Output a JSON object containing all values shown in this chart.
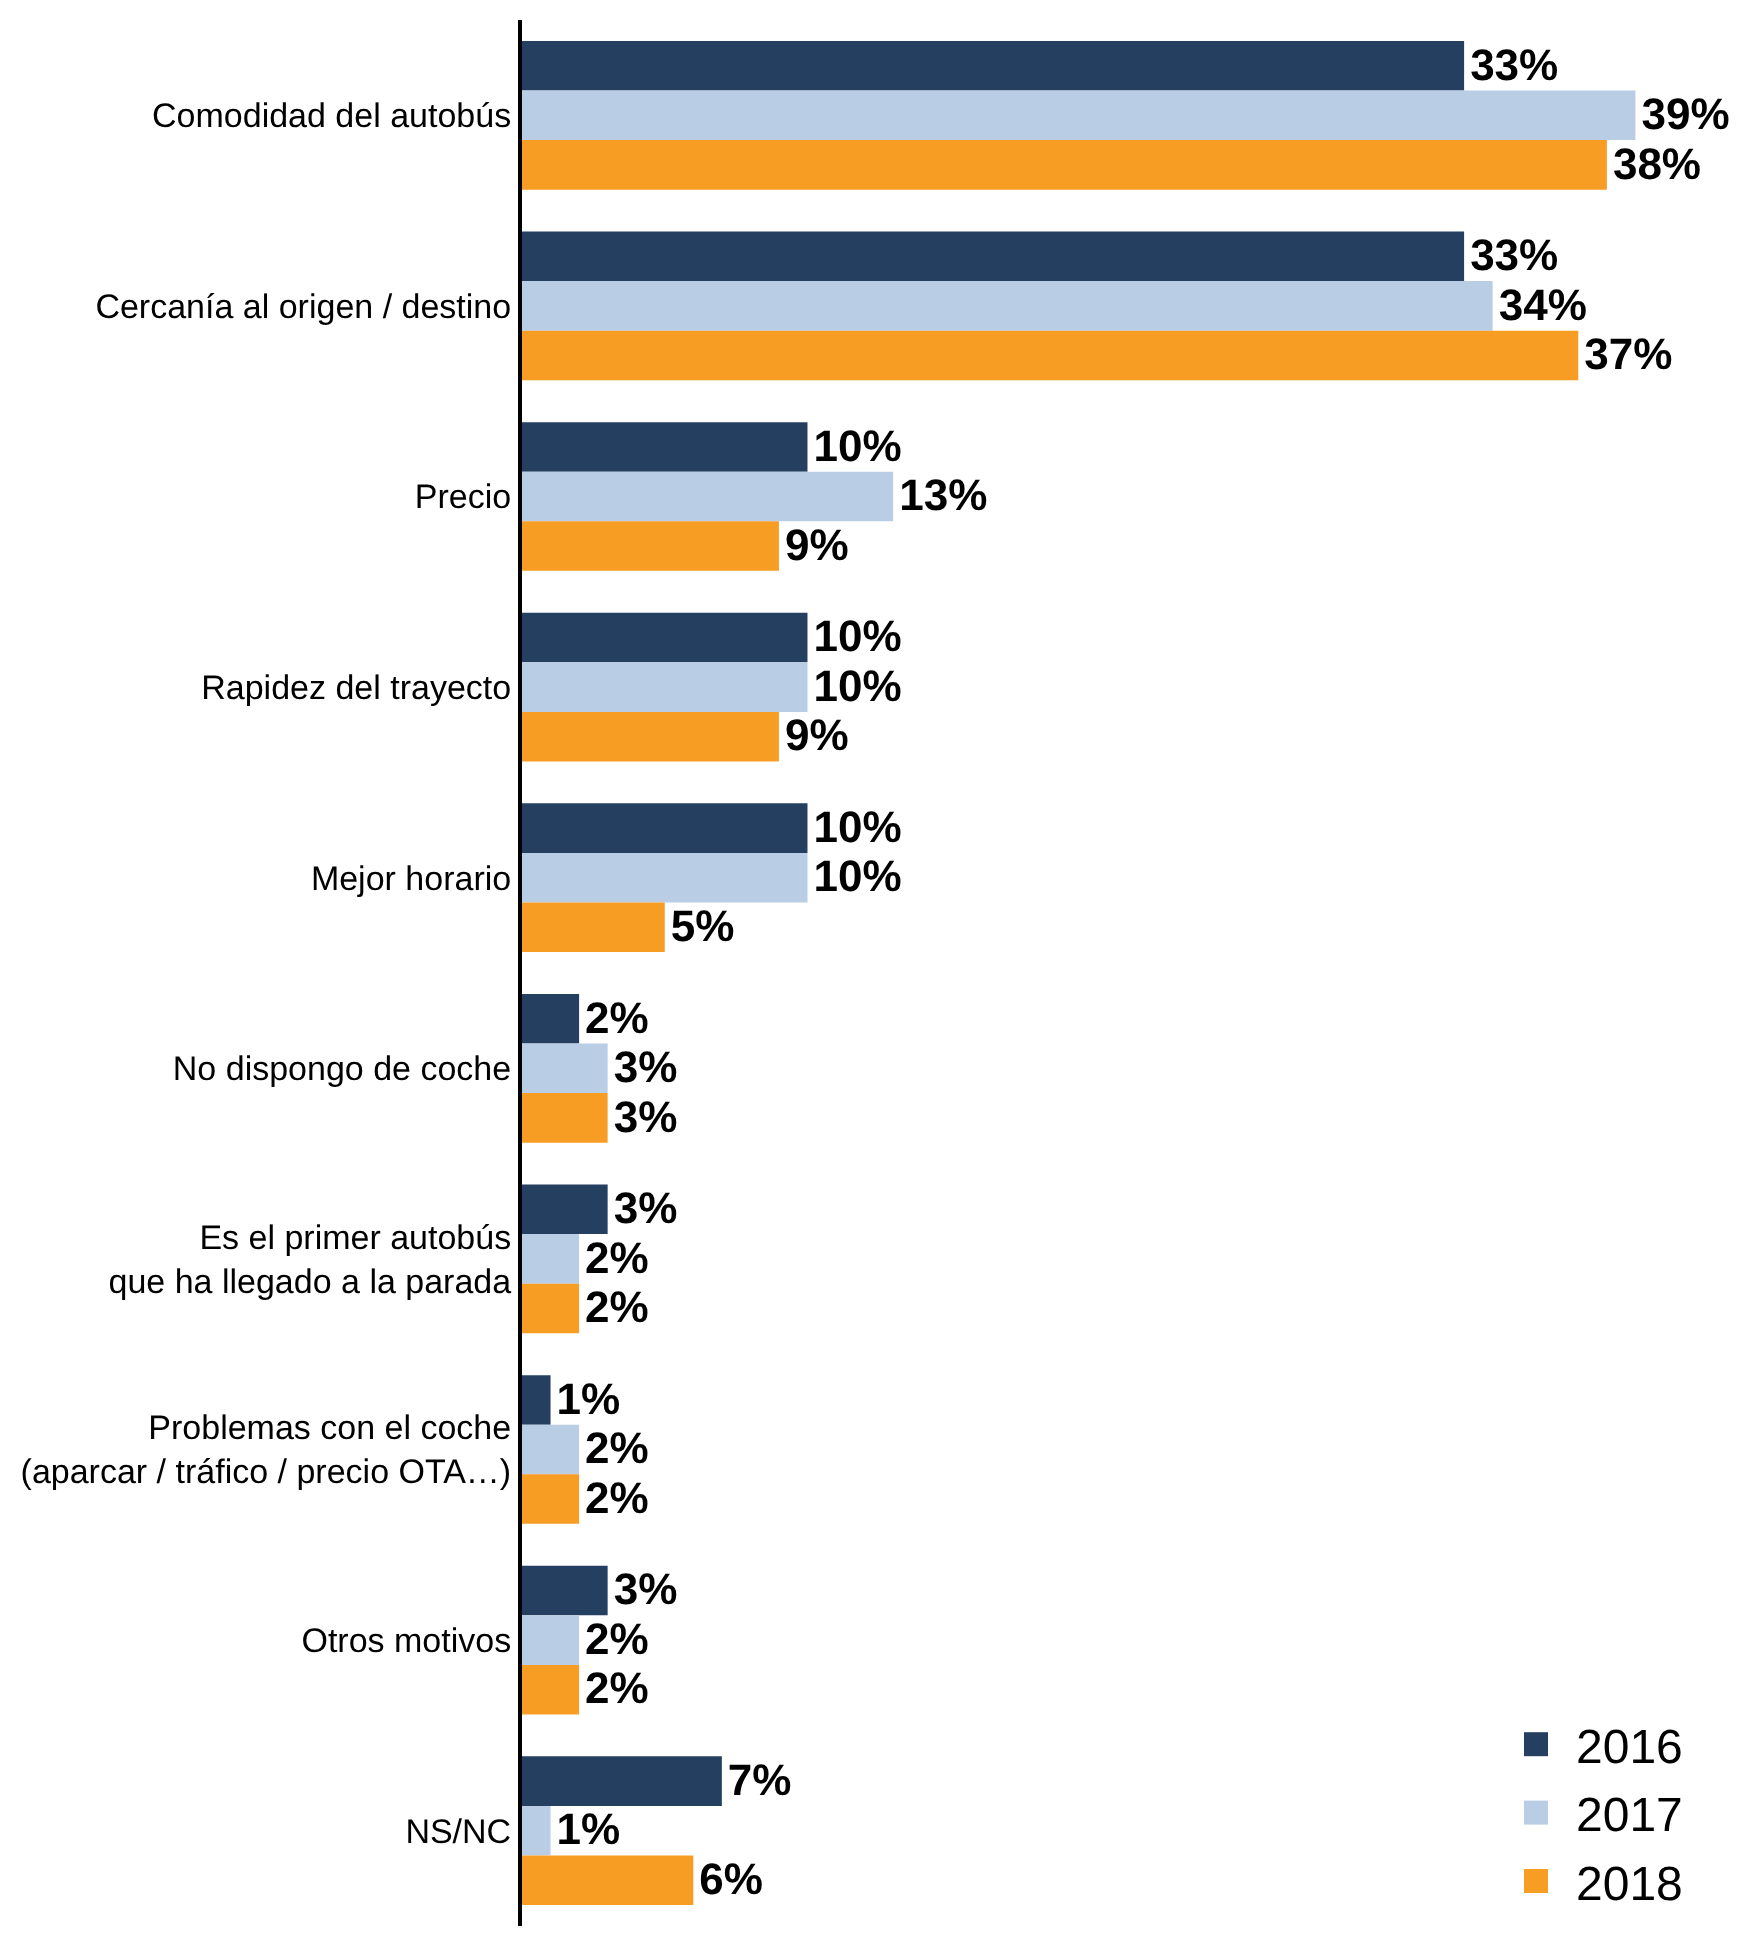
{
  "chart_data": {
    "type": "bar",
    "orientation": "horizontal",
    "categories": [
      "Comodidad del autobús",
      "Cercanía al origen / destino",
      "Precio",
      "Rapidez del trayecto",
      "Mejor horario",
      "No dispongo de coche",
      "Es el primer autobús\nque ha llegado a la parada",
      "Problemas con el coche\n(aparcar / tráfico / precio OTA…)",
      "Otros motivos",
      "NS/NC"
    ],
    "series": [
      {
        "name": "2016",
        "color": "#243f60",
        "values": [
          33,
          33,
          10,
          10,
          10,
          2,
          3,
          1,
          3,
          7
        ],
        "value_labels": [
          "33%",
          "33%",
          "10%",
          "10%",
          "10%",
          "2%",
          "3%",
          "1%",
          "3%",
          "7%"
        ]
      },
      {
        "name": "2017",
        "color": "#b9cde5",
        "values": [
          39,
          34,
          13,
          10,
          10,
          3,
          2,
          2,
          2,
          1
        ],
        "value_labels": [
          "39%",
          "34%",
          "13%",
          "10%",
          "10%",
          "3%",
          "2%",
          "2%",
          "2%",
          "1%"
        ]
      },
      {
        "name": "2018",
        "color": "#f79d24",
        "values": [
          38,
          37,
          9,
          9,
          5,
          3,
          2,
          2,
          2,
          6
        ],
        "value_labels": [
          "38%",
          "37%",
          "9%",
          "9%",
          "5%",
          "3%",
          "2%",
          "2%",
          "2%",
          "6%"
        ]
      }
    ],
    "tick_labels": "y",
    "legend": "bottom right"
  }
}
